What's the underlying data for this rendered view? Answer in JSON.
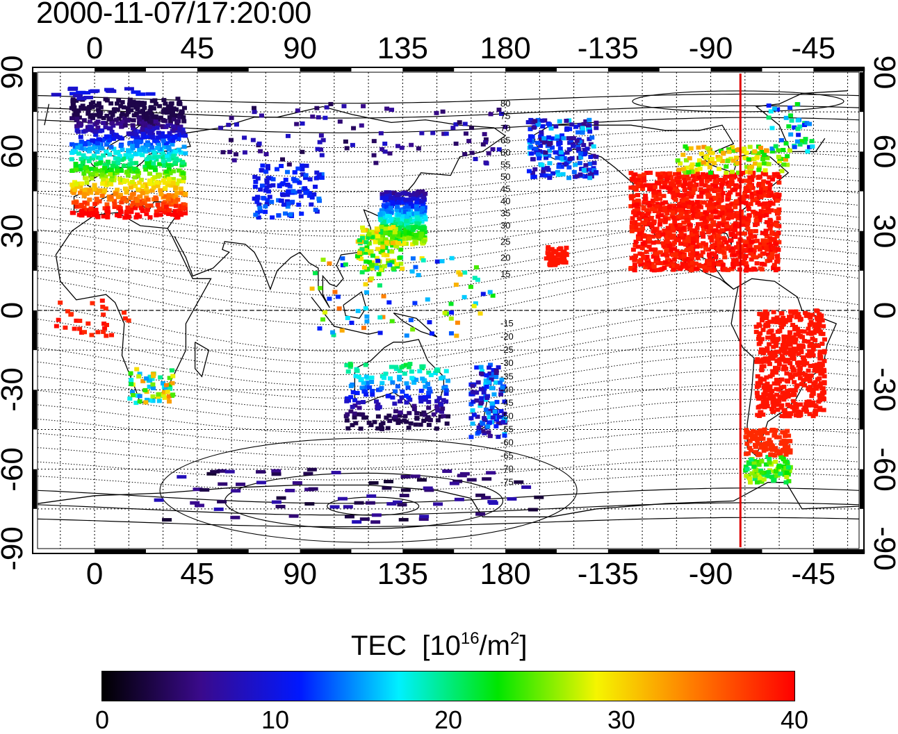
{
  "title": "2000-11-07/17:20:00",
  "lon_ticks": [
    "0",
    "45",
    "90",
    "135",
    "180",
    "-135",
    "-90",
    "-45"
  ],
  "lat_ticks": [
    "90",
    "60",
    "30",
    "0",
    "-30",
    "-60",
    "-90"
  ],
  "colorbar": {
    "title": "TEC",
    "units_prefix": "[10",
    "units_exp1": "16",
    "units_mid": "/m",
    "units_exp2": "2",
    "units_suffix": "]",
    "ticks": [
      "0",
      "10",
      "20",
      "30",
      "40"
    ],
    "range": [
      0,
      40
    ],
    "colors": [
      "#000000",
      "#3a0a8c",
      "#0018ff",
      "#00f0ff",
      "#00e600",
      "#f5f500",
      "#ff7800",
      "#ff0000"
    ]
  },
  "contour_labels_north": [
    "80",
    "75",
    "70",
    "65",
    "60",
    "55",
    "50",
    "45",
    "40",
    "35",
    "30",
    "25",
    "20",
    "15"
  ],
  "contour_labels_south": [
    "-15",
    "-20",
    "-25",
    "-30",
    "-35",
    "-40",
    "-45",
    "-50",
    "-55",
    "-60",
    "-65",
    "-70",
    "-75"
  ],
  "terminator_longitude": -77,
  "map_extent": {
    "lon": [
      -25,
      335
    ],
    "lat": [
      -90,
      90
    ]
  },
  "tec_regions": [
    {
      "name": "europe-north",
      "tec": 5
    },
    {
      "name": "europe-mid",
      "tec": 22
    },
    {
      "name": "europe-south",
      "tec": 38
    },
    {
      "name": "north-america",
      "tec": 40
    },
    {
      "name": "south-america",
      "tec": 40
    },
    {
      "name": "japan-east-asia",
      "tec": 9
    },
    {
      "name": "australia",
      "tec": 6
    },
    {
      "name": "antarctica",
      "tec": 4
    }
  ]
}
